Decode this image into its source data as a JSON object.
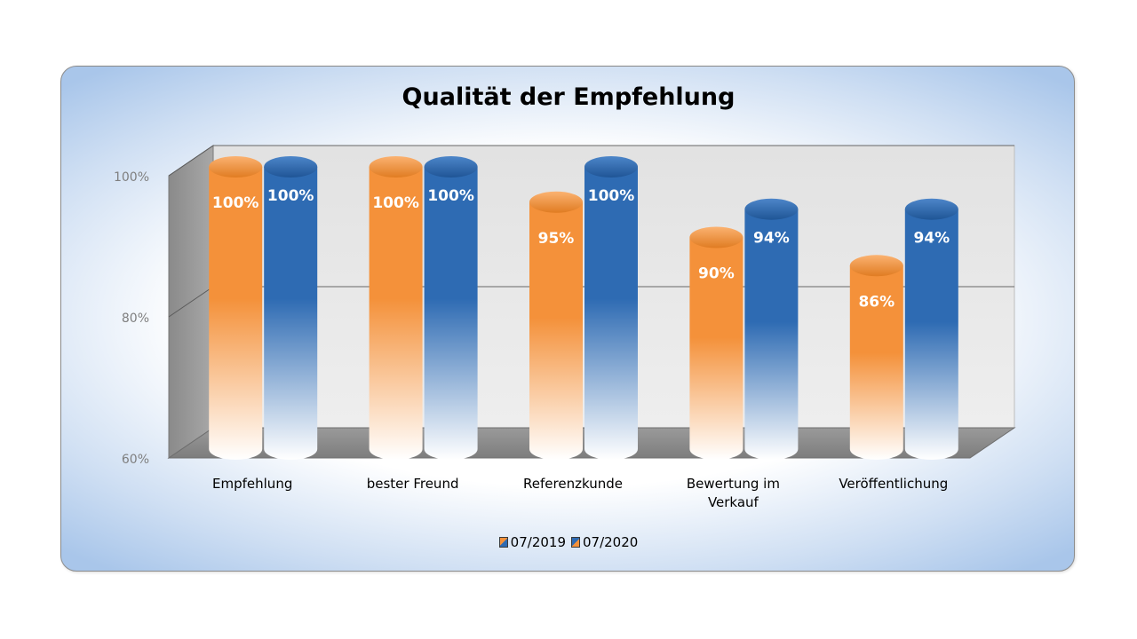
{
  "chart_data": {
    "type": "bar",
    "style": "3d-cylinder",
    "title": "Qualität der Empfehlung",
    "categories": [
      "Empfehlung",
      "bester Freund",
      "Referenzkunde",
      "Bewertung im Verkauf",
      "Veröffentlichung"
    ],
    "series": [
      {
        "name": "07/2019",
        "values": [
          100,
          100,
          95,
          90,
          86
        ],
        "labels": [
          "100%",
          "100%",
          "95%",
          "90%",
          "86%"
        ],
        "color": "#f4913a"
      },
      {
        "name": "07/2020",
        "values": [
          100,
          100,
          100,
          94,
          94
        ],
        "labels": [
          "100%",
          "100%",
          "100%",
          "94%",
          "94%"
        ],
        "color": "#2e6bb3"
      }
    ],
    "ylim": [
      60,
      100
    ],
    "yticks": [
      60,
      80,
      100
    ],
    "ytick_labels": [
      "60%",
      "80%",
      "100%"
    ],
    "xlabel": "",
    "ylabel": "",
    "grid": true,
    "legend": "bottom"
  }
}
